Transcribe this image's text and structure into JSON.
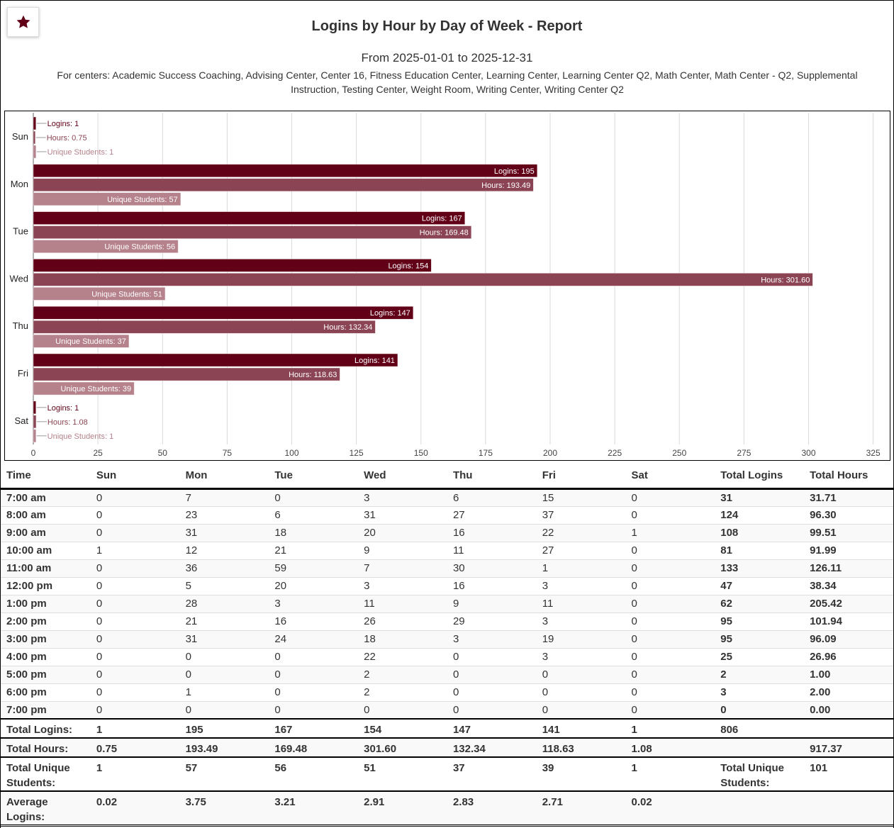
{
  "header": {
    "star_icon": "star-icon",
    "title": "Logins by Hour by Day of Week - Report",
    "date_range": "From 2025-01-01 to 2025-12-31",
    "centers": "For centers: Academic Success Coaching, Advising Center, Center 16, Fitness Education Center, Learning Center, Learning Center Q2, Math Center, Math Center - Q2, Supplemental Instruction, Testing Center, Weight Room, Writing Center, Writing Center Q2"
  },
  "colors": {
    "logins": "#610017",
    "hours": "#8b4453",
    "unique": "#b5818b",
    "grid": "#d9d9d9"
  },
  "chart_data": {
    "type": "bar",
    "orientation": "horizontal",
    "title": "",
    "xlabel": "",
    "ylabel": "",
    "categories": [
      "Sun",
      "Mon",
      "Tue",
      "Wed",
      "Thu",
      "Fri",
      "Sat"
    ],
    "series": [
      {
        "name": "Logins",
        "label_prefix": "Logins: ",
        "values": [
          1,
          195,
          167,
          154,
          147,
          141,
          1
        ],
        "labels": [
          "1",
          "195",
          "167",
          "154",
          "147",
          "141",
          "1"
        ]
      },
      {
        "name": "Hours",
        "label_prefix": "Hours: ",
        "values": [
          0.75,
          193.49,
          169.48,
          301.6,
          132.34,
          118.63,
          1.08
        ],
        "labels": [
          "0.75",
          "193.49",
          "169.48",
          "301.60",
          "132.34",
          "118.63",
          "1.08"
        ]
      },
      {
        "name": "Unique Students",
        "label_prefix": "Unique Students: ",
        "values": [
          1,
          57,
          56,
          51,
          37,
          39,
          1
        ],
        "labels": [
          "1",
          "57",
          "56",
          "51",
          "37",
          "39",
          "1"
        ]
      }
    ],
    "xlim": [
      0,
      325
    ],
    "xticks": [
      0,
      25,
      50,
      75,
      100,
      125,
      150,
      175,
      200,
      225,
      250,
      275,
      300,
      325
    ],
    "grid": true,
    "legend": "none"
  },
  "table": {
    "headers": [
      "Time",
      "Sun",
      "Mon",
      "Tue",
      "Wed",
      "Thu",
      "Fri",
      "Sat",
      "Total Logins",
      "Total Hours"
    ],
    "rows": [
      {
        "time": "7:00 am",
        "days": [
          "0",
          "7",
          "0",
          "3",
          "6",
          "15",
          "0"
        ],
        "total_logins": "31",
        "total_hours": "31.71"
      },
      {
        "time": "8:00 am",
        "days": [
          "0",
          "23",
          "6",
          "31",
          "27",
          "37",
          "0"
        ],
        "total_logins": "124",
        "total_hours": "96.30"
      },
      {
        "time": "9:00 am",
        "days": [
          "0",
          "31",
          "18",
          "20",
          "16",
          "22",
          "1"
        ],
        "total_logins": "108",
        "total_hours": "99.51"
      },
      {
        "time": "10:00 am",
        "days": [
          "1",
          "12",
          "21",
          "9",
          "11",
          "27",
          "0"
        ],
        "total_logins": "81",
        "total_hours": "91.99"
      },
      {
        "time": "11:00 am",
        "days": [
          "0",
          "36",
          "59",
          "7",
          "30",
          "1",
          "0"
        ],
        "total_logins": "133",
        "total_hours": "126.11"
      },
      {
        "time": "12:00 pm",
        "days": [
          "0",
          "5",
          "20",
          "3",
          "16",
          "3",
          "0"
        ],
        "total_logins": "47",
        "total_hours": "38.34"
      },
      {
        "time": "1:00 pm",
        "days": [
          "0",
          "28",
          "3",
          "11",
          "9",
          "11",
          "0"
        ],
        "total_logins": "62",
        "total_hours": "205.42"
      },
      {
        "time": "2:00 pm",
        "days": [
          "0",
          "21",
          "16",
          "26",
          "29",
          "3",
          "0"
        ],
        "total_logins": "95",
        "total_hours": "101.94"
      },
      {
        "time": "3:00 pm",
        "days": [
          "0",
          "31",
          "24",
          "18",
          "3",
          "19",
          "0"
        ],
        "total_logins": "95",
        "total_hours": "96.09"
      },
      {
        "time": "4:00 pm",
        "days": [
          "0",
          "0",
          "0",
          "22",
          "0",
          "3",
          "0"
        ],
        "total_logins": "25",
        "total_hours": "26.96"
      },
      {
        "time": "5:00 pm",
        "days": [
          "0",
          "0",
          "0",
          "2",
          "0",
          "0",
          "0"
        ],
        "total_logins": "2",
        "total_hours": "1.00"
      },
      {
        "time": "6:00 pm",
        "days": [
          "0",
          "1",
          "0",
          "2",
          "0",
          "0",
          "0"
        ],
        "total_logins": "3",
        "total_hours": "2.00"
      },
      {
        "time": "7:00 pm",
        "days": [
          "0",
          "0",
          "0",
          "0",
          "0",
          "0",
          "0"
        ],
        "total_logins": "0",
        "total_hours": "0.00"
      }
    ],
    "totals": {
      "logins": {
        "label": "Total Logins:",
        "days": [
          "1",
          "195",
          "167",
          "154",
          "147",
          "141",
          "1"
        ],
        "grand": "806"
      },
      "hours": {
        "label": "Total Hours:",
        "days": [
          "0.75",
          "193.49",
          "169.48",
          "301.60",
          "132.34",
          "118.63",
          "1.08"
        ],
        "grand": "917.37"
      },
      "unique": {
        "label": "Total Unique Students:",
        "days": [
          "1",
          "57",
          "56",
          "51",
          "37",
          "39",
          "1"
        ],
        "grand_label": "Total Unique Students:",
        "grand": "101"
      },
      "average": {
        "label": "Average Logins:",
        "days": [
          "0.02",
          "3.75",
          "3.21",
          "2.91",
          "2.83",
          "2.71",
          "0.02"
        ]
      }
    }
  }
}
